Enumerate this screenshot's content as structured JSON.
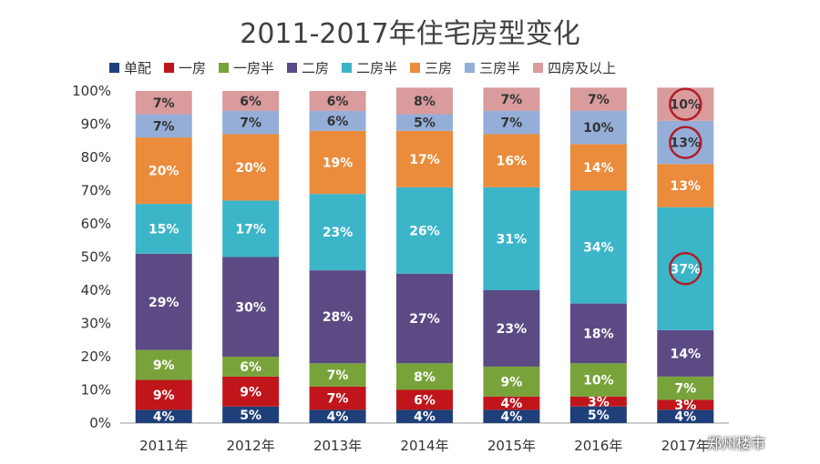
{
  "chart_data": {
    "type": "bar",
    "stacked": true,
    "title": "2011-2017年住宅房型变化",
    "categories": [
      "2011年",
      "2012年",
      "2013年",
      "2014年",
      "2015年",
      "2016年",
      "2017年"
    ],
    "ylim": [
      0,
      100
    ],
    "yticks": [
      "0%",
      "10%",
      "20%",
      "30%",
      "40%",
      "50%",
      "60%",
      "70%",
      "80%",
      "90%",
      "100%"
    ],
    "legend_position": "top",
    "series": [
      {
        "name": "单配",
        "color": "#1f3f7a",
        "values": [
          4,
          5,
          4,
          4,
          4,
          5,
          4
        ]
      },
      {
        "name": "一房",
        "color": "#c0161b",
        "values": [
          9,
          9,
          7,
          6,
          4,
          3,
          3
        ]
      },
      {
        "name": "一房半",
        "color": "#78a33a",
        "values": [
          9,
          6,
          7,
          8,
          9,
          10,
          7
        ]
      },
      {
        "name": "二房",
        "color": "#5c4a85",
        "values": [
          29,
          30,
          28,
          27,
          23,
          18,
          14
        ]
      },
      {
        "name": "二房半",
        "color": "#3cb5c9",
        "values": [
          15,
          17,
          23,
          26,
          31,
          34,
          37
        ]
      },
      {
        "name": "三房",
        "color": "#ea8c3c",
        "values": [
          20,
          20,
          19,
          17,
          16,
          14,
          13
        ]
      },
      {
        "name": "三房半",
        "color": "#94aed8",
        "values": [
          7,
          7,
          6,
          5,
          7,
          10,
          13
        ]
      },
      {
        "name": "四房及以上",
        "color": "#d99b9c",
        "values": [
          7,
          6,
          6,
          8,
          7,
          7,
          10
        ]
      }
    ],
    "annotations": [
      {
        "category": "2017年",
        "series": "四房及以上",
        "mark": "circle"
      },
      {
        "category": "2017年",
        "series": "三房半",
        "mark": "circle"
      },
      {
        "category": "2017年",
        "series": "二房半",
        "mark": "circle"
      }
    ]
  },
  "watermark": "郑州楼市"
}
